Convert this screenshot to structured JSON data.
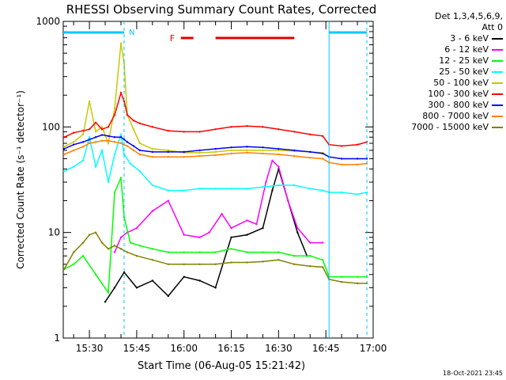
{
  "chart_data": {
    "type": "line",
    "title": "RHESSI Observing Summary Count Rates, Corrected",
    "xlabel": "Start Time (06-Aug-05 15:21:42)",
    "ylabel": "Corrected Count Rate (s⁻¹ detector⁻¹)",
    "ylog": true,
    "xlim": [
      "15:21:42",
      "17:00:00"
    ],
    "ylim": [
      1,
      1000
    ],
    "x_ticks": [
      "15:30",
      "15:45",
      "16:00",
      "16:15",
      "16:30",
      "16:45",
      "17:00"
    ],
    "y_ticks": [
      "1",
      "10",
      "100",
      "1000"
    ],
    "legend_header": [
      "Det 1,3,4,5,6,9,",
      "Att 0"
    ],
    "series": [
      {
        "name": "3 - 6 keV",
        "color": "#000000",
        "x": [
          "15:35",
          "15:38",
          "15:41",
          "15:45",
          "15:50",
          "15:55",
          "16:00",
          "16:05",
          "16:10",
          "16:15",
          "16:20",
          "16:25",
          "16:28",
          "16:30",
          "16:33",
          "16:36",
          "16:39"
        ],
        "y": [
          2.2,
          3.0,
          4.2,
          3.0,
          3.5,
          2.5,
          3.8,
          3.5,
          3.0,
          9.0,
          9.5,
          11,
          25,
          40,
          20,
          10,
          6
        ]
      },
      {
        "name": "6 - 12 keV",
        "color": "#ff00ff",
        "x": [
          "15:38",
          "15:40",
          "15:42",
          "15:45",
          "15:50",
          "15:55",
          "16:00",
          "16:05",
          "16:08",
          "16:12",
          "16:15",
          "16:20",
          "16:23",
          "16:26",
          "16:28",
          "16:30",
          "16:33",
          "16:36",
          "16:40",
          "16:44"
        ],
        "y": [
          6.5,
          9,
          10,
          11,
          16,
          20,
          9.5,
          9,
          10,
          15,
          11,
          13,
          12,
          30,
          48,
          42,
          20,
          11,
          8,
          8
        ]
      },
      {
        "name": "12 - 25 keV",
        "color": "#00ff00",
        "x": [
          "15:22",
          "15:25",
          "15:28",
          "15:32",
          "15:36",
          "15:38",
          "15:40",
          "15:41",
          "15:43",
          "15:46",
          "15:50",
          "15:55",
          "16:00",
          "16:05",
          "16:10",
          "16:15",
          "16:20",
          "16:25",
          "16:30",
          "16:35",
          "16:40",
          "16:44",
          "16:46",
          "16:50",
          "16:55",
          "16:58"
        ],
        "y": [
          4.5,
          5,
          6,
          4.0,
          2.7,
          24,
          33,
          14,
          8,
          7.5,
          7,
          6.5,
          6.5,
          6.5,
          6.5,
          7,
          6.5,
          6.5,
          6.5,
          6,
          6,
          5.5,
          3.8,
          3.8,
          3.8,
          3.8
        ]
      },
      {
        "name": "25 - 50 keV",
        "color": "#00ffff",
        "x": [
          "15:22",
          "15:25",
          "15:28",
          "15:30",
          "15:32",
          "15:34",
          "15:36",
          "15:38",
          "15:40",
          "15:41",
          "15:43",
          "15:46",
          "15:50",
          "15:55",
          "16:00",
          "16:05",
          "16:10",
          "16:15",
          "16:20",
          "16:25",
          "16:30",
          "16:35",
          "16:40",
          "16:44",
          "16:46",
          "16:50",
          "16:55",
          "16:58"
        ],
        "y": [
          38,
          42,
          48,
          80,
          42,
          60,
          30,
          55,
          85,
          55,
          45,
          38,
          28,
          25,
          25,
          26,
          26,
          26,
          26,
          27,
          28,
          28,
          26,
          25,
          24,
          24,
          23,
          24
        ]
      },
      {
        "name": "50 - 100 keV",
        "color": "#c8c800",
        "x": [
          "15:22",
          "15:25",
          "15:28",
          "15:30",
          "15:32",
          "15:34",
          "15:36",
          "15:38",
          "15:40",
          "15:41",
          "15:42",
          "15:44",
          "15:46",
          "15:50",
          "15:55",
          "16:00",
          "16:05",
          "16:10",
          "16:15",
          "16:20",
          "16:25",
          "16:30",
          "16:35",
          "16:40",
          "16:44",
          "16:46",
          "16:50",
          "16:55",
          "16:58"
        ],
        "y": [
          65,
          72,
          85,
          175,
          90,
          100,
          70,
          150,
          620,
          400,
          130,
          95,
          70,
          62,
          60,
          57,
          57,
          58,
          60,
          60,
          60,
          60,
          59,
          58,
          57,
          52,
          50,
          50,
          50
        ]
      },
      {
        "name": "100 - 300 keV",
        "color": "#ff0000",
        "x": [
          "15:22",
          "15:25",
          "15:28",
          "15:30",
          "15:32",
          "15:34",
          "15:36",
          "15:38",
          "15:40",
          "15:41",
          "15:42",
          "15:44",
          "15:46",
          "15:50",
          "15:55",
          "16:00",
          "16:05",
          "16:10",
          "16:15",
          "16:20",
          "16:25",
          "16:30",
          "16:35",
          "16:40",
          "16:44",
          "16:46",
          "16:50",
          "16:55",
          "16:58"
        ],
        "y": [
          80,
          88,
          92,
          95,
          110,
          95,
          100,
          130,
          210,
          175,
          130,
          115,
          108,
          100,
          92,
          90,
          90,
          95,
          100,
          102,
          100,
          95,
          90,
          85,
          82,
          68,
          66,
          68,
          72
        ]
      },
      {
        "name": "300 - 800 keV",
        "color": "#0000ff",
        "x": [
          "15:22",
          "15:25",
          "15:28",
          "15:30",
          "15:32",
          "15:34",
          "15:36",
          "15:38",
          "15:40",
          "15:41",
          "15:42",
          "15:44",
          "15:46",
          "15:50",
          "15:55",
          "16:00",
          "16:05",
          "16:10",
          "16:15",
          "16:20",
          "16:25",
          "16:30",
          "16:35",
          "16:40",
          "16:44",
          "16:46",
          "16:50",
          "16:55",
          "16:58"
        ],
        "y": [
          62,
          68,
          72,
          76,
          80,
          84,
          82,
          80,
          80,
          76,
          72,
          66,
          60,
          58,
          58,
          58,
          60,
          62,
          64,
          65,
          64,
          62,
          60,
          58,
          56,
          52,
          50,
          50,
          50
        ]
      },
      {
        "name": "800 - 7000 keV",
        "color": "#ff8000",
        "x": [
          "15:22",
          "15:25",
          "15:28",
          "15:30",
          "15:32",
          "15:34",
          "15:36",
          "15:38",
          "15:40",
          "15:41",
          "15:42",
          "15:44",
          "15:46",
          "15:50",
          "15:55",
          "16:00",
          "16:05",
          "16:10",
          "16:15",
          "16:20",
          "16:25",
          "16:30",
          "16:35",
          "16:40",
          "16:44",
          "16:46",
          "16:50",
          "16:55",
          "16:58"
        ],
        "y": [
          55,
          60,
          65,
          70,
          72,
          74,
          74,
          72,
          70,
          68,
          66,
          60,
          55,
          52,
          52,
          52,
          53,
          54,
          56,
          57,
          56,
          55,
          53,
          51,
          50,
          46,
          44,
          44,
          45
        ]
      },
      {
        "name": "7000 - 15000 keV",
        "color": "#808000",
        "x": [
          "15:22",
          "15:25",
          "15:28",
          "15:30",
          "15:32",
          "15:34",
          "15:36",
          "15:38",
          "15:40",
          "15:42",
          "15:45",
          "15:50",
          "15:55",
          "16:00",
          "16:05",
          "16:10",
          "16:15",
          "16:20",
          "16:25",
          "16:30",
          "16:35",
          "16:40",
          "16:44",
          "16:46",
          "16:50",
          "16:55",
          "16:58"
        ],
        "y": [
          4.5,
          6.5,
          8,
          9.5,
          10,
          8,
          7,
          7.5,
          7,
          6.5,
          6,
          5.5,
          5,
          5,
          5,
          5,
          5.2,
          5.2,
          5.3,
          5.5,
          5,
          4.8,
          4.7,
          3.6,
          3.4,
          3.3,
          3.3
        ]
      }
    ],
    "annotations": [
      {
        "text": "N",
        "color": "#00c8ff"
      },
      {
        "text": "F",
        "color": "#e00000"
      }
    ],
    "night_intervals": [
      [
        "15:21:42",
        "15:41:00"
      ],
      [
        "16:46:00",
        "16:58:00"
      ]
    ],
    "flare_intervals": [
      [
        "15:59:00",
        "16:03:00"
      ],
      [
        "16:10:00",
        "16:35:00"
      ]
    ],
    "night_markers": [
      "15:41:00",
      "16:46:00",
      "16:58:00"
    ]
  },
  "footer": {
    "timestamp": "18-Oct-2021 23:45"
  }
}
